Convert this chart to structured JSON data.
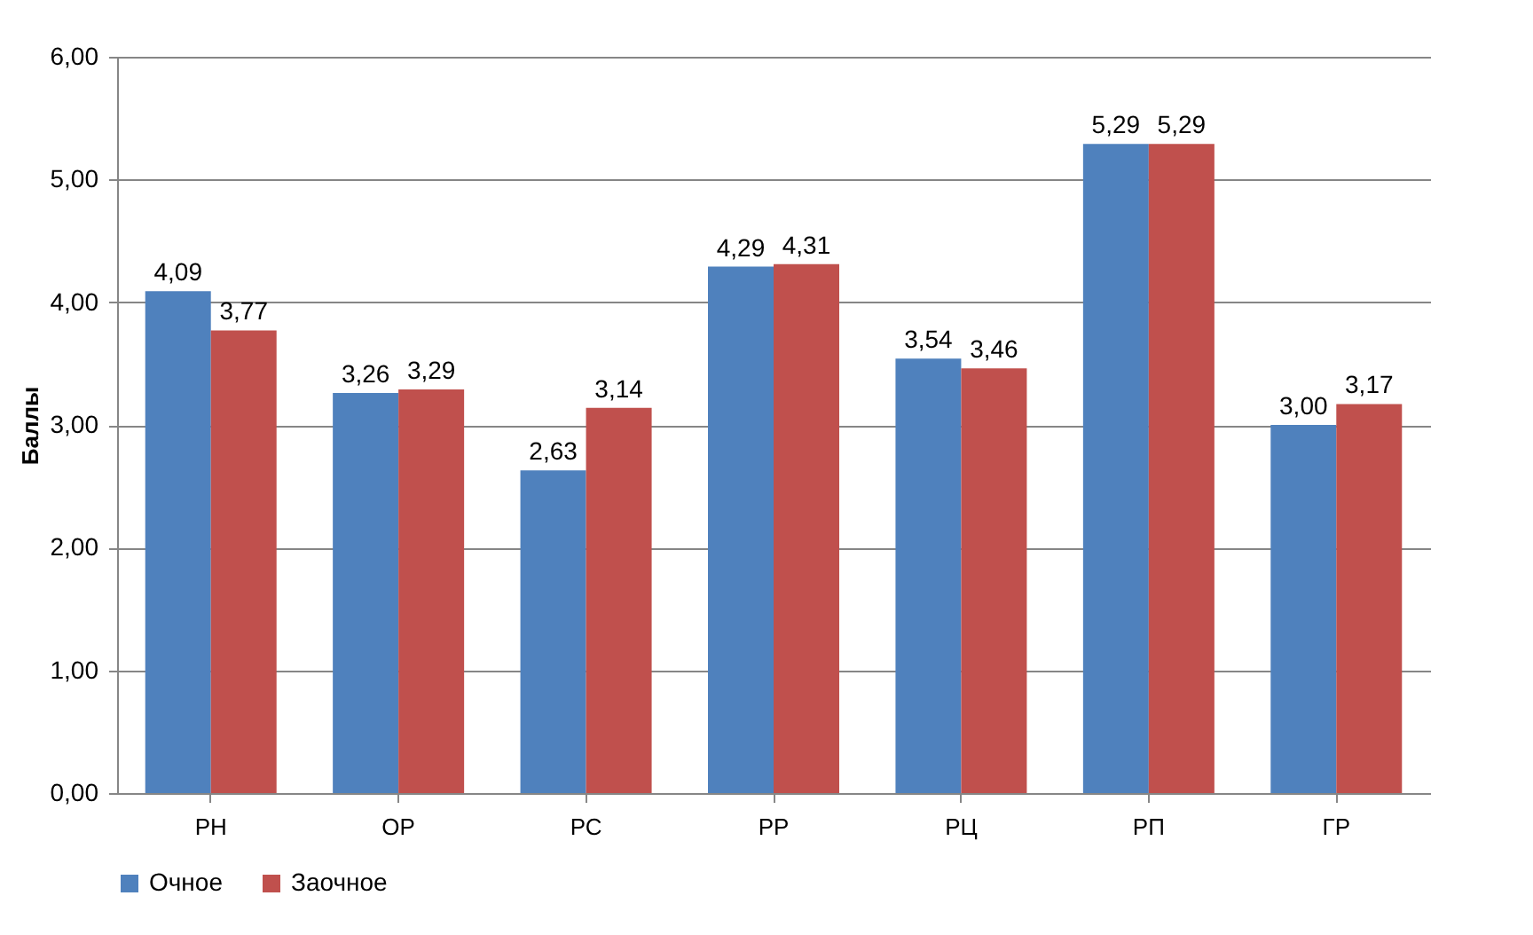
{
  "chart_data": {
    "type": "bar",
    "ylabel": "Баллы",
    "categories": [
      "РН",
      "ОР",
      "РС",
      "РР",
      "РЦ",
      "РП",
      "ГР"
    ],
    "series": [
      {
        "name": "Очное",
        "color": "#4f81bd",
        "values": [
          4.09,
          3.26,
          2.63,
          4.29,
          3.54,
          5.29,
          3.0
        ],
        "value_labels": [
          "4,09",
          "3,26",
          "2,63",
          "4,29",
          "3,54",
          "5,29",
          "3,00"
        ]
      },
      {
        "name": "Заочное",
        "color": "#c0504d",
        "values": [
          3.77,
          3.29,
          3.14,
          4.31,
          3.46,
          5.29,
          3.17
        ],
        "value_labels": [
          "3,77",
          "3,29",
          "3,14",
          "4,31",
          "3,46",
          "5,29",
          "3,17"
        ]
      }
    ],
    "ylim": [
      0,
      6
    ],
    "yticks": [
      {
        "value": 0,
        "label": "0,00"
      },
      {
        "value": 1,
        "label": "1,00"
      },
      {
        "value": 2,
        "label": "2,00"
      },
      {
        "value": 3,
        "label": "3,00"
      },
      {
        "value": 4,
        "label": "4,00"
      },
      {
        "value": 5,
        "label": "5,00"
      },
      {
        "value": 6,
        "label": "6,00"
      }
    ],
    "grid": "y",
    "legend": "bottom"
  }
}
